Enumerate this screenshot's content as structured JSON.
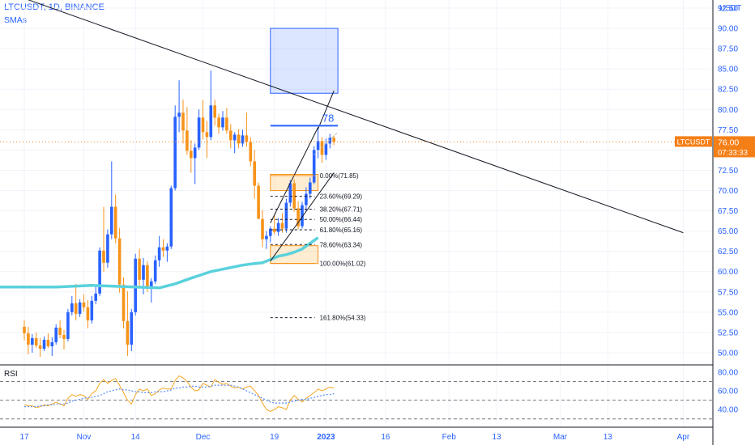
{
  "header": {
    "symbol_line": "LTCUSDT, 1D, BINANCE",
    "indicator": "SMAs"
  },
  "chart_data": {
    "type": "candlestick",
    "title": "LTCUSDT, 1D, BINANCE",
    "currency": "USDT",
    "price_axis": {
      "ticks": [
        "92.50",
        "90.00",
        "87.50",
        "85.00",
        "82.50",
        "80.00",
        "77.50",
        "75.00",
        "72.50",
        "70.00",
        "67.50",
        "65.00",
        "62.50",
        "60.00",
        "57.50",
        "55.00",
        "52.50",
        "50.00"
      ],
      "range": [
        48.6,
        93.5
      ]
    },
    "time_axis": {
      "labels": [
        {
          "label": "17",
          "day": 0
        },
        {
          "label": "Nov",
          "day": 15
        },
        {
          "label": "14",
          "day": 28
        },
        {
          "label": "Dec",
          "day": 45
        },
        {
          "label": "19",
          "day": 63
        },
        {
          "label": "2023",
          "day": 76
        },
        {
          "label": "16",
          "day": 91
        },
        {
          "label": "Feb",
          "day": 107
        },
        {
          "label": "13",
          "day": 119
        },
        {
          "label": "Mar",
          "day": 135
        },
        {
          "label": "13",
          "day": 147
        },
        {
          "label": "Apr",
          "day": 166
        }
      ]
    },
    "last_price": {
      "symbol": "LTCUSDT",
      "price": "76.00",
      "countdown": "07:33:33",
      "value": 76.0
    },
    "candles": [
      [
        53.2,
        54.0,
        51.5,
        52.4
      ],
      [
        52.4,
        53.2,
        49.8,
        51.0
      ],
      [
        51.0,
        52.3,
        50.0,
        51.8
      ],
      [
        51.8,
        52.5,
        50.6,
        50.9
      ],
      [
        50.9,
        51.8,
        49.5,
        50.5
      ],
      [
        50.5,
        52.0,
        50.2,
        51.6
      ],
      [
        51.6,
        52.4,
        50.6,
        50.8
      ],
      [
        50.8,
        51.9,
        49.6,
        51.3
      ],
      [
        51.3,
        53.5,
        51.0,
        53.1
      ],
      [
        53.1,
        54.0,
        51.8,
        52.2
      ],
      [
        52.2,
        52.8,
        50.4,
        51.7
      ],
      [
        51.7,
        55.4,
        51.4,
        55.0
      ],
      [
        55.0,
        57.0,
        54.6,
        56.1
      ],
      [
        56.1,
        58.5,
        54.0,
        54.8
      ],
      [
        54.8,
        56.6,
        54.4,
        56.2
      ],
      [
        56.2,
        57.2,
        55.1,
        55.6
      ],
      [
        55.6,
        56.5,
        53.0,
        54.0
      ],
      [
        54.0,
        57.0,
        53.6,
        56.4
      ],
      [
        56.4,
        58.2,
        56.0,
        57.3
      ],
      [
        57.3,
        63.0,
        57.0,
        62.6
      ],
      [
        62.6,
        68.0,
        60.0,
        61.1
      ],
      [
        61.1,
        65.2,
        60.5,
        64.6
      ],
      [
        64.6,
        73.6,
        64.0,
        68.0
      ],
      [
        68.0,
        69.5,
        63.5,
        64.1
      ],
      [
        64.1,
        65.4,
        57.4,
        58.4
      ],
      [
        58.4,
        59.3,
        53.0,
        53.9
      ],
      [
        53.9,
        57.6,
        49.6,
        51.0
      ],
      [
        51.0,
        55.4,
        50.2,
        55.0
      ],
      [
        55.0,
        62.2,
        54.6,
        61.6
      ],
      [
        61.6,
        62.8,
        58.0,
        59.0
      ],
      [
        59.0,
        61.7,
        57.2,
        60.8
      ],
      [
        60.8,
        61.3,
        57.5,
        58.0
      ],
      [
        58.0,
        59.2,
        56.2,
        58.8
      ],
      [
        58.8,
        62.0,
        58.5,
        61.4
      ],
      [
        61.4,
        64.4,
        60.6,
        63.0
      ],
      [
        63.0,
        64.0,
        61.8,
        62.6
      ],
      [
        62.6,
        63.5,
        61.2,
        63.1
      ],
      [
        63.1,
        70.6,
        62.8,
        70.3
      ],
      [
        70.3,
        80.5,
        70.0,
        79.1
      ],
      [
        79.1,
        83.6,
        77.2,
        79.6
      ],
      [
        79.6,
        81.2,
        75.8,
        77.4
      ],
      [
        77.4,
        80.3,
        74.4,
        74.9
      ],
      [
        74.9,
        76.2,
        72.2,
        74.0
      ],
      [
        74.0,
        75.8,
        70.8,
        75.3
      ],
      [
        75.3,
        80.0,
        75.0,
        79.0
      ],
      [
        79.0,
        81.2,
        76.3,
        77.2
      ],
      [
        77.2,
        78.6,
        74.0,
        76.6
      ],
      [
        76.6,
        84.8,
        76.2,
        80.5
      ],
      [
        80.5,
        81.2,
        78.0,
        79.0
      ],
      [
        79.0,
        79.5,
        77.0,
        77.8
      ],
      [
        77.8,
        79.8,
        77.4,
        79.0
      ],
      [
        79.0,
        80.2,
        77.0,
        77.4
      ],
      [
        77.4,
        78.2,
        75.2,
        76.2
      ],
      [
        76.2,
        77.2,
        74.6,
        76.9
      ],
      [
        76.9,
        77.6,
        75.2,
        75.8
      ],
      [
        75.8,
        77.5,
        75.4,
        76.8
      ],
      [
        76.8,
        79.6,
        75.4,
        76.0
      ],
      [
        76.0,
        76.6,
        73.0,
        73.6
      ],
      [
        73.6,
        75.0,
        69.0,
        70.6
      ],
      [
        70.6,
        71.0,
        66.6,
        66.5
      ],
      [
        66.5,
        67.6,
        63.0,
        64.0
      ],
      [
        64.0,
        65.0,
        62.8,
        64.4
      ],
      [
        64.4,
        65.6,
        63.6,
        65.3
      ],
      [
        65.3,
        67.0,
        64.6,
        64.9
      ],
      [
        64.9,
        66.6,
        64.4,
        66.0
      ],
      [
        66.0,
        67.2,
        64.8,
        65.3
      ],
      [
        65.3,
        69.0,
        64.8,
        68.5
      ],
      [
        68.5,
        71.3,
        68.0,
        70.9
      ],
      [
        70.9,
        71.4,
        67.4,
        67.8
      ],
      [
        67.8,
        68.7,
        65.2,
        65.6
      ],
      [
        65.6,
        68.6,
        65.3,
        68.2
      ],
      [
        68.2,
        70.4,
        67.4,
        69.6
      ],
      [
        69.6,
        71.6,
        69.0,
        71.0
      ],
      [
        71.0,
        75.5,
        70.8,
        75.0
      ],
      [
        75.0,
        77.8,
        74.0,
        76.1
      ],
      [
        76.1,
        76.6,
        73.4,
        74.4
      ],
      [
        74.4,
        76.4,
        73.8,
        75.8
      ],
      [
        75.8,
        77.0,
        75.2,
        76.5
      ],
      [
        76.5,
        76.8,
        75.6,
        76.0
      ]
    ],
    "sma": {
      "color": "#5ad1dc",
      "points": [
        [
          0,
          58.1
        ],
        [
          8,
          58.1
        ],
        [
          17,
          58.3
        ],
        [
          28,
          58.1
        ],
        [
          34,
          58.0
        ],
        [
          38,
          58.5
        ],
        [
          42,
          59.2
        ],
        [
          47,
          60.0
        ],
        [
          51,
          60.4
        ],
        [
          55,
          60.8
        ],
        [
          58,
          61.0
        ],
        [
          60,
          61.1
        ],
        [
          62,
          61.5
        ],
        [
          64,
          61.9
        ],
        [
          66,
          62.1
        ],
        [
          68,
          62.4
        ],
        [
          70,
          62.8
        ],
        [
          72,
          63.5
        ],
        [
          74,
          64.2
        ]
      ]
    },
    "trendline": {
      "color": "#131722",
      "start": [
        0,
        93.7
      ],
      "end": [
        166,
        64.8
      ]
    },
    "channel": {
      "upper": [
        [
          62,
          66.0
        ],
        [
          74,
          77.8
        ]
      ],
      "lower": [
        [
          62,
          61.3
        ],
        [
          78,
          72.2
        ]
      ],
      "projection": [
        [
          74,
          77.6
        ],
        [
          78,
          82.3
        ]
      ],
      "dashed_extension": [
        [
          73,
          74.4
        ],
        [
          79,
          77.2
        ]
      ]
    },
    "target_box": {
      "x": [
        62,
        79
      ],
      "y": [
        82.0,
        90.0
      ],
      "color": "#2962ff"
    },
    "target_level": {
      "label": "78",
      "value": 78.0,
      "x": [
        62,
        79
      ]
    },
    "fib_zones": [
      {
        "y": [
          70.0,
          72.0
        ],
        "x": [
          62,
          74
        ]
      },
      {
        "y": [
          61.0,
          63.2
        ],
        "x": [
          62,
          74
        ]
      }
    ],
    "fib_levels": [
      {
        "ratio": "0.00%",
        "price": "71.85",
        "value": 71.85
      },
      {
        "ratio": "23.60%",
        "price": "69.29",
        "value": 69.29
      },
      {
        "ratio": "38.20%",
        "price": "67.71",
        "value": 67.71
      },
      {
        "ratio": "50.00%",
        "price": "66.44",
        "value": 66.44
      },
      {
        "ratio": "61.80%",
        "price": "65.16",
        "value": 65.16
      },
      {
        "ratio": "78.60%",
        "price": "63.34",
        "value": 63.34
      },
      {
        "ratio": "100.00%",
        "price": "61.02",
        "value": 61.02
      },
      {
        "ratio": "161.80%",
        "price": "54.33",
        "value": 54.33
      }
    ],
    "rsi": {
      "label": "RSI",
      "ticks": [
        "80.00",
        "60.00",
        "40.00"
      ],
      "bands": [
        70,
        50,
        30
      ],
      "range": [
        22,
        86
      ],
      "values": [
        45,
        44,
        44,
        42,
        43,
        45,
        44,
        46,
        48,
        46,
        44,
        52,
        56,
        54,
        56,
        55,
        51,
        57,
        60,
        68,
        72,
        68,
        71,
        73,
        66,
        58,
        50,
        46,
        56,
        62,
        60,
        62,
        55,
        57,
        61,
        63,
        62,
        62,
        71,
        76,
        74,
        70,
        64,
        60,
        61,
        68,
        66,
        64,
        72,
        69,
        67,
        68,
        65,
        63,
        64,
        62,
        64,
        65,
        60,
        55,
        47,
        40,
        38,
        40,
        43,
        42,
        40,
        50,
        55,
        51,
        48,
        52,
        55,
        58,
        62,
        60,
        62,
        64,
        63
      ],
      "signal": [
        43,
        43,
        43,
        43,
        44,
        44,
        45,
        45,
        46,
        46,
        46,
        47,
        49,
        50,
        51,
        52,
        53,
        53,
        54,
        55,
        57,
        59,
        60,
        61,
        62,
        61,
        61,
        60,
        59,
        59,
        58,
        58,
        58,
        59,
        59,
        59,
        60,
        61,
        63,
        63,
        64,
        64,
        65,
        65,
        64,
        64,
        64,
        65,
        66,
        66,
        66,
        66,
        66,
        65,
        64,
        62,
        60,
        58,
        56,
        54,
        52,
        50,
        48,
        47,
        47,
        47,
        47,
        48,
        49,
        50,
        51,
        51,
        52,
        53,
        54,
        55,
        56,
        56,
        57
      ]
    }
  },
  "colors": {
    "bull": "#2962ff",
    "bear": "#f7931a",
    "grid": "#f0f3fa",
    "axis_text": "#2962ff",
    "last_price_bg": "#f57f17",
    "rsi_line": "#f5a623",
    "rsi_signal": "#5b8ff9"
  }
}
